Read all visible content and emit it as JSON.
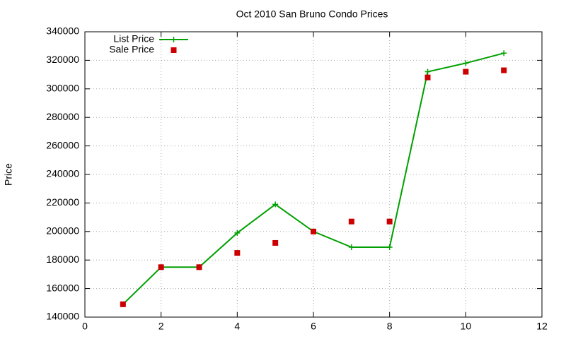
{
  "chart_data": {
    "type": "line",
    "title": "Oct 2010 San Bruno Condo Prices",
    "y_label": "Price",
    "x": [
      1,
      2,
      3,
      4,
      5,
      6,
      7,
      8,
      9,
      10,
      11
    ],
    "series": [
      {
        "name": "List Price",
        "color": "#00a000",
        "mode": "linespoints",
        "values": [
          149000,
          175000,
          175000,
          199000,
          219000,
          200000,
          189000,
          189000,
          312000,
          318000,
          325000
        ]
      },
      {
        "name": "Sale Price",
        "color": "#cc0000",
        "mode": "points",
        "values": [
          149000,
          175000,
          175000,
          185000,
          192000,
          200000,
          207000,
          207000,
          308000,
          312000,
          313000
        ]
      }
    ],
    "xlim": [
      0,
      12
    ],
    "xticks": [
      0,
      2,
      4,
      6,
      8,
      10,
      12
    ],
    "ylim": [
      140000,
      340000
    ],
    "yticks": [
      140000,
      160000,
      180000,
      200000,
      220000,
      240000,
      260000,
      280000,
      300000,
      320000,
      340000
    ],
    "grid": true,
    "legend": "top-left"
  }
}
